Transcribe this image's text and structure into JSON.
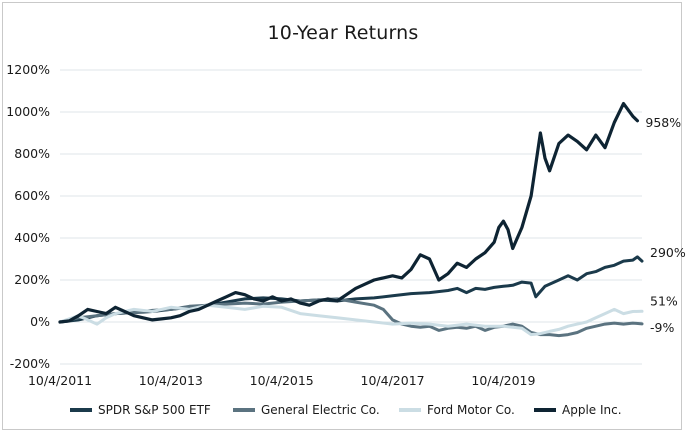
{
  "chart_data": {
    "type": "line",
    "title": "10-Year Returns",
    "xlabel": "",
    "ylabel": "",
    "ylim": [
      -200,
      1200
    ],
    "yticks": [
      -200,
      0,
      200,
      400,
      600,
      800,
      1000,
      1200
    ],
    "ytick_labels": [
      "-200%",
      "0%",
      "200%",
      "400%",
      "600%",
      "800%",
      "1000%",
      "1200%"
    ],
    "xticks": [
      0,
      24,
      48,
      72,
      96
    ],
    "xtick_labels": [
      "10/4/2011",
      "10/4/2013",
      "10/4/2015",
      "10/4/2017",
      "10/4/2019"
    ],
    "x_unit": "months since 10/4/2011",
    "grid": "horizontal",
    "legend": "bottom",
    "series": [
      {
        "name": "SPDR S&P 500 ETF",
        "color": "#1b3a4b",
        "end_label": "290%",
        "points": [
          [
            0,
            0
          ],
          [
            4,
            10
          ],
          [
            8,
            30
          ],
          [
            12,
            40
          ],
          [
            16,
            45
          ],
          [
            20,
            50
          ],
          [
            24,
            60
          ],
          [
            28,
            70
          ],
          [
            32,
            80
          ],
          [
            36,
            95
          ],
          [
            40,
            110
          ],
          [
            44,
            115
          ],
          [
            48,
            110
          ],
          [
            52,
            100
          ],
          [
            56,
            105
          ],
          [
            60,
            100
          ],
          [
            64,
            110
          ],
          [
            68,
            115
          ],
          [
            72,
            125
          ],
          [
            76,
            135
          ],
          [
            80,
            140
          ],
          [
            84,
            150
          ],
          [
            86,
            160
          ],
          [
            88,
            140
          ],
          [
            90,
            160
          ],
          [
            92,
            155
          ],
          [
            94,
            165
          ],
          [
            96,
            170
          ],
          [
            98,
            175
          ],
          [
            100,
            190
          ],
          [
            102,
            185
          ],
          [
            103,
            120
          ],
          [
            105,
            170
          ],
          [
            108,
            200
          ],
          [
            110,
            220
          ],
          [
            112,
            200
          ],
          [
            114,
            230
          ],
          [
            116,
            240
          ],
          [
            118,
            260
          ],
          [
            120,
            270
          ],
          [
            122,
            290
          ],
          [
            124,
            295
          ],
          [
            125,
            310
          ],
          [
            126,
            290
          ]
        ]
      },
      {
        "name": "General Electric Co.",
        "color": "#5b7380",
        "end_label": "-9%",
        "points": [
          [
            0,
            0
          ],
          [
            4,
            20
          ],
          [
            8,
            30
          ],
          [
            12,
            40
          ],
          [
            16,
            45
          ],
          [
            20,
            55
          ],
          [
            24,
            60
          ],
          [
            28,
            75
          ],
          [
            32,
            80
          ],
          [
            36,
            85
          ],
          [
            40,
            90
          ],
          [
            44,
            85
          ],
          [
            48,
            95
          ],
          [
            52,
            100
          ],
          [
            56,
            105
          ],
          [
            60,
            110
          ],
          [
            64,
            95
          ],
          [
            68,
            80
          ],
          [
            70,
            60
          ],
          [
            72,
            10
          ],
          [
            74,
            -10
          ],
          [
            76,
            -20
          ],
          [
            78,
            -25
          ],
          [
            80,
            -20
          ],
          [
            82,
            -40
          ],
          [
            84,
            -30
          ],
          [
            86,
            -25
          ],
          [
            88,
            -30
          ],
          [
            90,
            -20
          ],
          [
            92,
            -40
          ],
          [
            94,
            -25
          ],
          [
            96,
            -20
          ],
          [
            98,
            -10
          ],
          [
            100,
            -20
          ],
          [
            102,
            -50
          ],
          [
            104,
            -60
          ],
          [
            106,
            -60
          ],
          [
            108,
            -65
          ],
          [
            110,
            -60
          ],
          [
            112,
            -50
          ],
          [
            114,
            -30
          ],
          [
            116,
            -20
          ],
          [
            118,
            -10
          ],
          [
            120,
            -5
          ],
          [
            122,
            -10
          ],
          [
            124,
            -5
          ],
          [
            126,
            -9
          ]
        ]
      },
      {
        "name": "Ford Motor Co.",
        "color": "#cbdde4",
        "end_label": "51%",
        "points": [
          [
            0,
            0
          ],
          [
            4,
            30
          ],
          [
            6,
            10
          ],
          [
            8,
            -10
          ],
          [
            10,
            20
          ],
          [
            12,
            40
          ],
          [
            16,
            60
          ],
          [
            20,
            50
          ],
          [
            24,
            70
          ],
          [
            28,
            60
          ],
          [
            32,
            80
          ],
          [
            36,
            70
          ],
          [
            40,
            60
          ],
          [
            44,
            75
          ],
          [
            48,
            70
          ],
          [
            52,
            40
          ],
          [
            56,
            30
          ],
          [
            60,
            20
          ],
          [
            64,
            10
          ],
          [
            68,
            0
          ],
          [
            72,
            -10
          ],
          [
            76,
            -5
          ],
          [
            80,
            -10
          ],
          [
            84,
            -20
          ],
          [
            88,
            -10
          ],
          [
            92,
            -20
          ],
          [
            96,
            -20
          ],
          [
            100,
            -30
          ],
          [
            102,
            -60
          ],
          [
            104,
            -55
          ],
          [
            106,
            -45
          ],
          [
            108,
            -35
          ],
          [
            110,
            -20
          ],
          [
            112,
            -10
          ],
          [
            114,
            0
          ],
          [
            116,
            20
          ],
          [
            118,
            40
          ],
          [
            120,
            60
          ],
          [
            122,
            40
          ],
          [
            124,
            50
          ],
          [
            126,
            51
          ]
        ]
      },
      {
        "name": "Apple Inc.",
        "color": "#0e2433",
        "end_label": "958%",
        "points": [
          [
            0,
            0
          ],
          [
            2,
            5
          ],
          [
            4,
            30
          ],
          [
            6,
            60
          ],
          [
            8,
            50
          ],
          [
            10,
            40
          ],
          [
            12,
            70
          ],
          [
            14,
            50
          ],
          [
            16,
            30
          ],
          [
            18,
            20
          ],
          [
            20,
            10
          ],
          [
            22,
            15
          ],
          [
            24,
            20
          ],
          [
            26,
            30
          ],
          [
            28,
            50
          ],
          [
            30,
            60
          ],
          [
            32,
            80
          ],
          [
            34,
            100
          ],
          [
            36,
            120
          ],
          [
            38,
            140
          ],
          [
            40,
            130
          ],
          [
            42,
            110
          ],
          [
            44,
            100
          ],
          [
            46,
            120
          ],
          [
            48,
            100
          ],
          [
            50,
            110
          ],
          [
            52,
            90
          ],
          [
            54,
            80
          ],
          [
            56,
            100
          ],
          [
            58,
            110
          ],
          [
            60,
            100
          ],
          [
            62,
            130
          ],
          [
            64,
            160
          ],
          [
            66,
            180
          ],
          [
            68,
            200
          ],
          [
            70,
            210
          ],
          [
            72,
            220
          ],
          [
            74,
            210
          ],
          [
            76,
            250
          ],
          [
            78,
            320
          ],
          [
            80,
            300
          ],
          [
            82,
            200
          ],
          [
            84,
            230
          ],
          [
            86,
            280
          ],
          [
            88,
            260
          ],
          [
            90,
            300
          ],
          [
            92,
            330
          ],
          [
            94,
            380
          ],
          [
            95,
            450
          ],
          [
            96,
            480
          ],
          [
            97,
            440
          ],
          [
            98,
            350
          ],
          [
            100,
            450
          ],
          [
            102,
            600
          ],
          [
            104,
            900
          ],
          [
            105,
            780
          ],
          [
            106,
            720
          ],
          [
            108,
            850
          ],
          [
            110,
            890
          ],
          [
            112,
            860
          ],
          [
            114,
            820
          ],
          [
            116,
            890
          ],
          [
            118,
            830
          ],
          [
            120,
            950
          ],
          [
            122,
            1040
          ],
          [
            124,
            980
          ],
          [
            125,
            958
          ]
        ]
      }
    ]
  }
}
